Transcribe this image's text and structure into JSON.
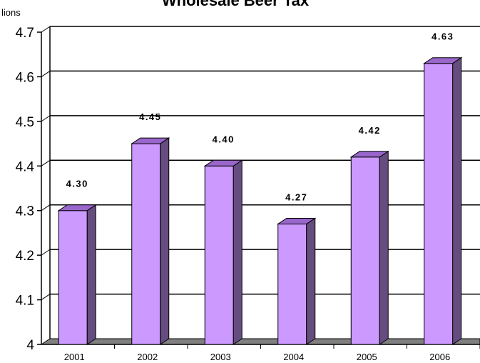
{
  "chart_data": {
    "type": "bar",
    "title": "Wholesale Beer Tax",
    "ylabel": "lions",
    "xlabel": "",
    "categories": [
      "2001",
      "2002",
      "2003",
      "2004",
      "2005",
      "2006"
    ],
    "values": [
      4.3,
      4.45,
      4.4,
      4.27,
      4.42,
      4.63
    ],
    "data_labels": [
      "4.30",
      "4.45",
      "4.40",
      "4.27",
      "4.42",
      "4.63"
    ],
    "yticks": [
      "4",
      "4.1",
      "4.2",
      "4.3",
      "4.4",
      "4.5",
      "4.6",
      "4.7"
    ],
    "ytick_values": [
      4.0,
      4.1,
      4.2,
      4.3,
      4.4,
      4.5,
      4.6,
      4.7
    ],
    "ylim": [
      4.0,
      4.7
    ],
    "grid": true,
    "legend": "none",
    "colors": {
      "bar_front": "#cc99ff",
      "bar_side": "#664d80",
      "bar_top": "#9966cc",
      "floor": "#808080",
      "grid": "#000000"
    }
  }
}
